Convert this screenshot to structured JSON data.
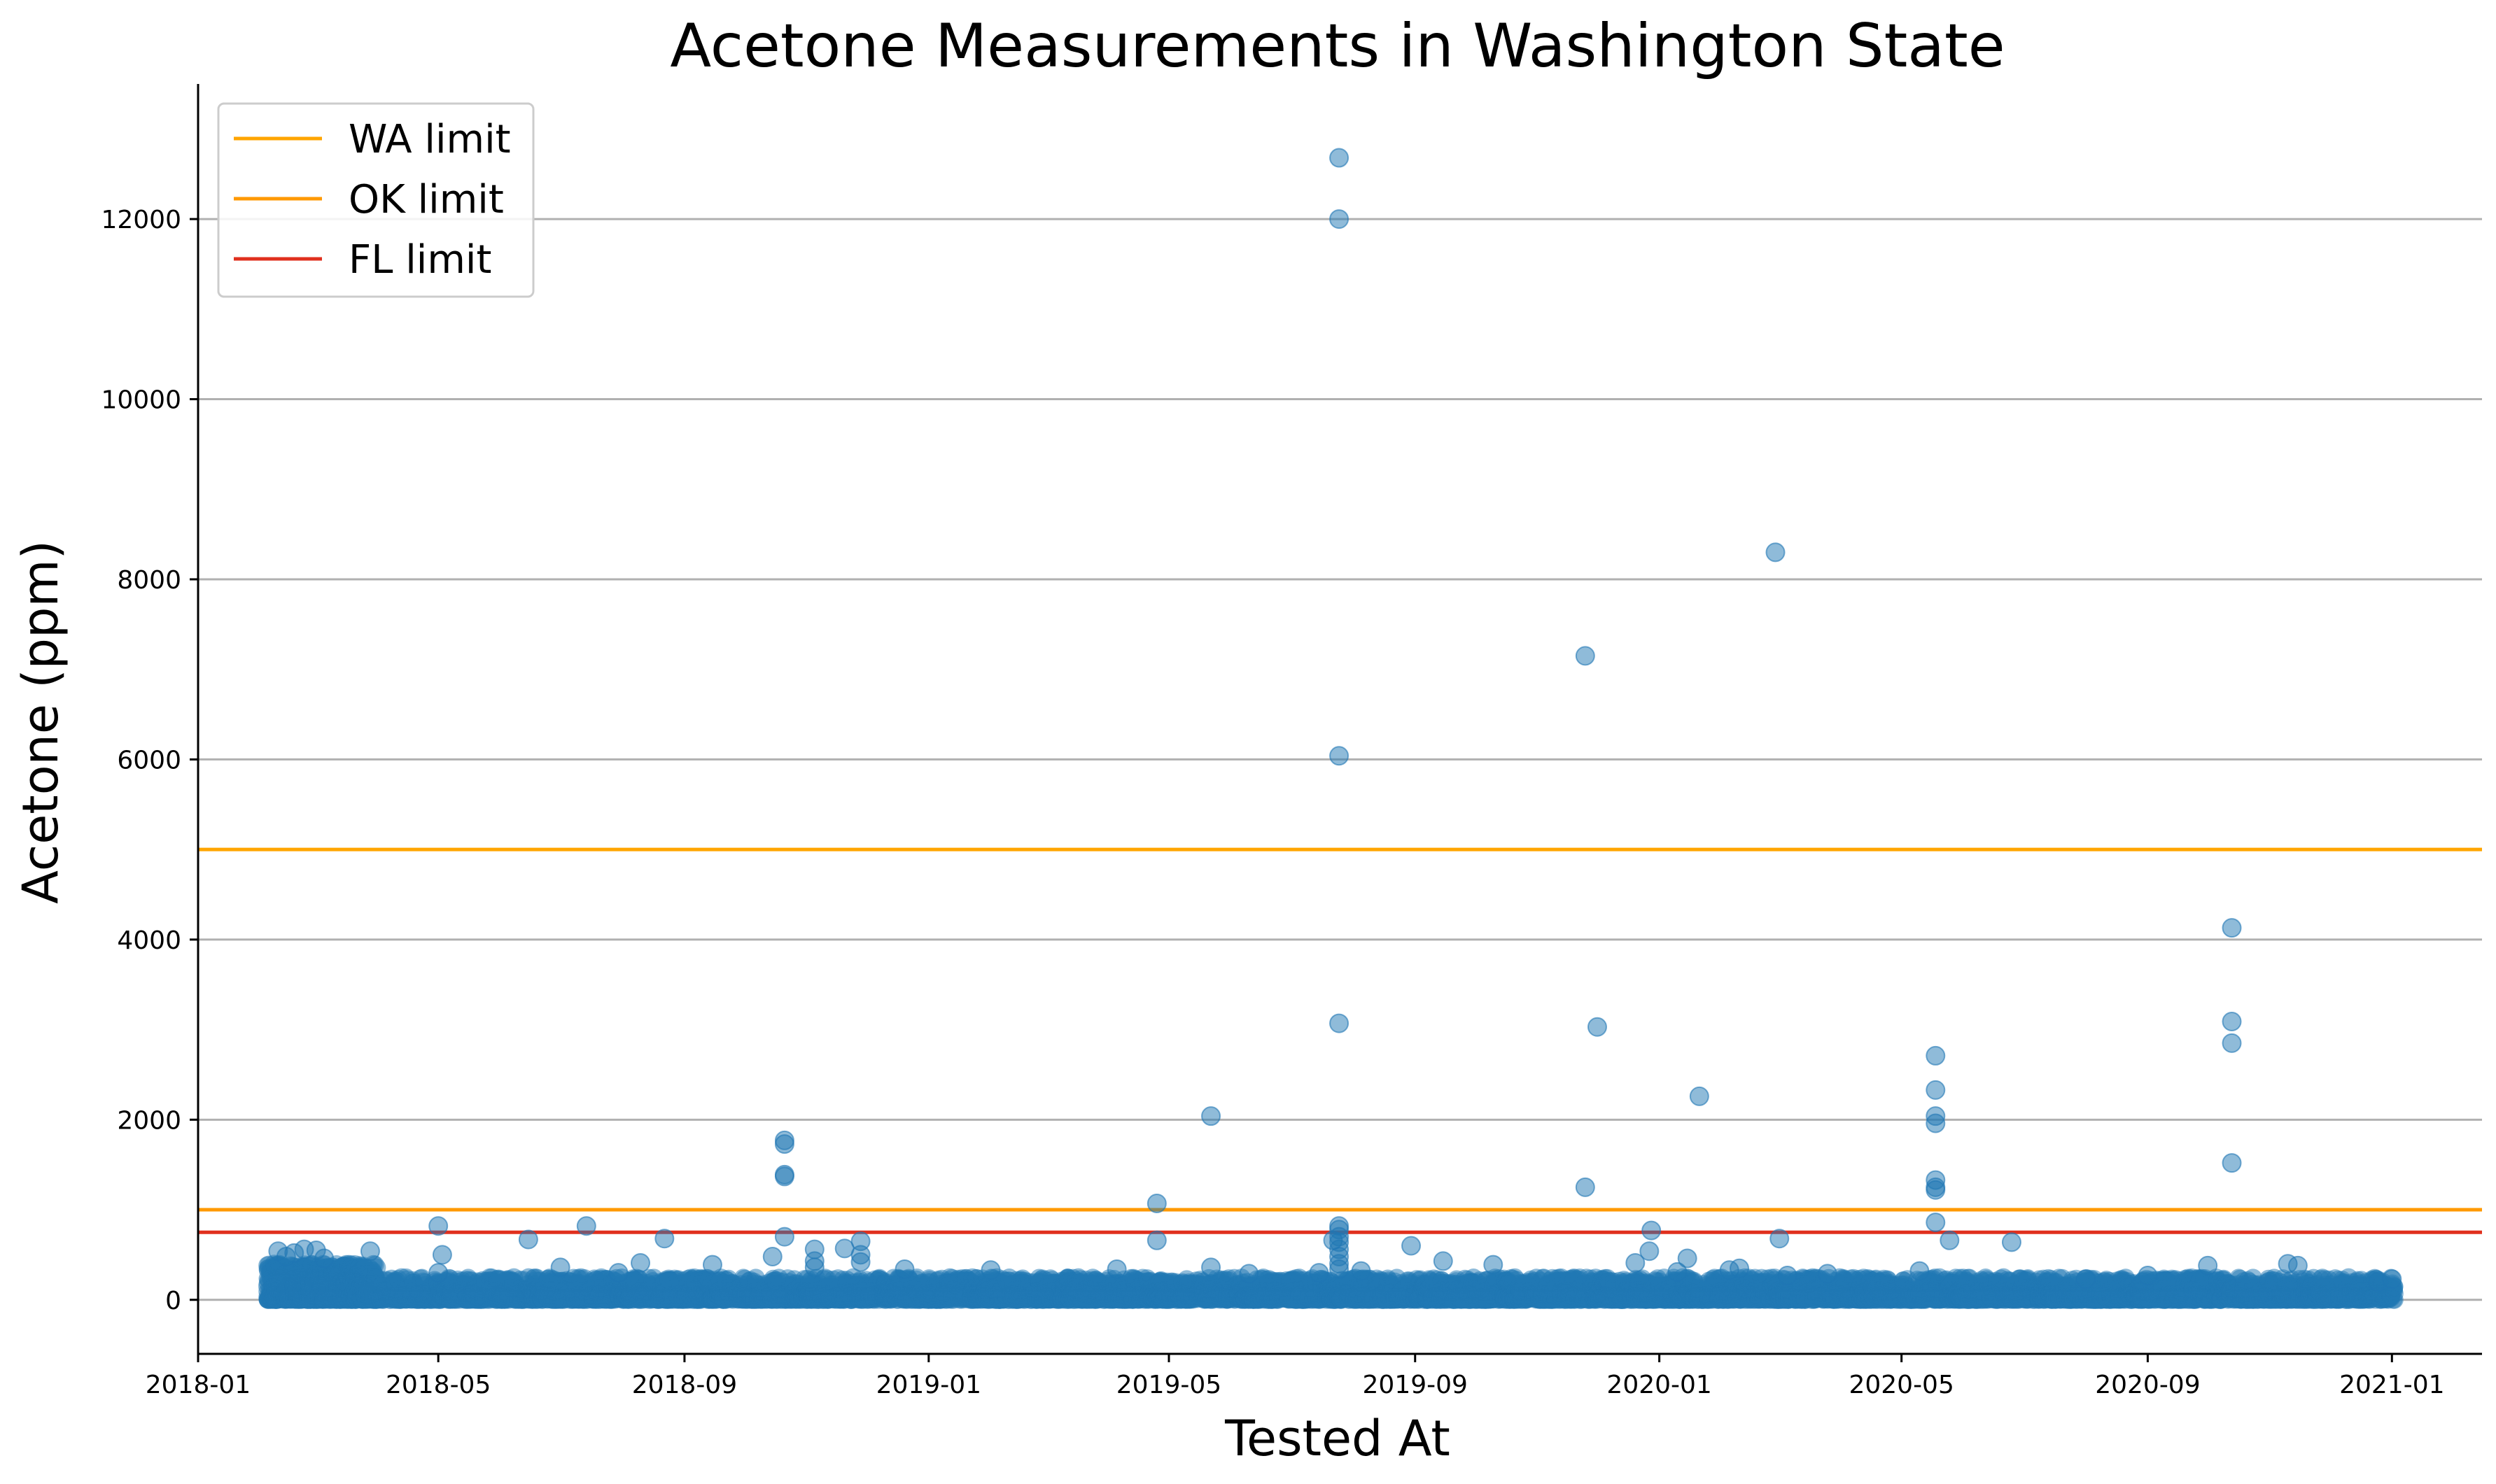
{
  "chart_data": {
    "type": "scatter",
    "title": "Acetone Measurements in Washington State",
    "xlabel": "Tested At",
    "ylabel": "Acetone (ppm)",
    "x_type": "date",
    "xlim": [
      "2018-01-01",
      "2021-02-15"
    ],
    "ylim": [
      -600,
      13500
    ],
    "x_ticks": [
      "2018-01",
      "2018-05",
      "2018-09",
      "2019-01",
      "2019-05",
      "2019-09",
      "2020-01",
      "2020-05",
      "2020-09",
      "2021-01"
    ],
    "y_ticks": [
      0,
      2000,
      4000,
      6000,
      8000,
      10000,
      12000
    ],
    "grid": "horizontal",
    "legend_position": "top-left",
    "marker_color": "#1f77b4",
    "limits": [
      {
        "name": "WA limit",
        "value": 5000,
        "color": "#ffa500"
      },
      {
        "name": "OK limit",
        "value": 1000,
        "color": "#ff9900"
      },
      {
        "name": "FL limit",
        "value": 750,
        "color": "#e0301e"
      }
    ],
    "series": [
      {
        "points": [
          [
            "2018-02-10",
            540
          ],
          [
            "2018-02-14",
            480
          ],
          [
            "2018-02-18",
            520
          ],
          [
            "2018-02-23",
            560
          ],
          [
            "2018-03-01",
            550
          ],
          [
            "2018-03-05",
            460
          ],
          [
            "2018-03-28",
            540
          ],
          [
            "2018-05-01",
            820
          ],
          [
            "2018-05-01",
            300
          ],
          [
            "2018-05-03",
            500
          ],
          [
            "2018-06-15",
            670
          ],
          [
            "2018-07-14",
            820
          ],
          [
            "2018-07-01",
            360
          ],
          [
            "2018-07-30",
            300
          ],
          [
            "2018-08-10",
            410
          ],
          [
            "2018-08-22",
            680
          ],
          [
            "2018-09-15",
            390
          ],
          [
            "2018-10-15",
            480
          ],
          [
            "2018-10-21",
            1770
          ],
          [
            "2018-10-21",
            1730
          ],
          [
            "2018-10-21",
            1390
          ],
          [
            "2018-10-21",
            1370
          ],
          [
            "2018-10-21",
            700
          ],
          [
            "2018-11-05",
            560
          ],
          [
            "2018-11-05",
            430
          ],
          [
            "2018-11-05",
            360
          ],
          [
            "2018-11-20",
            570
          ],
          [
            "2018-11-28",
            650
          ],
          [
            "2018-11-28",
            500
          ],
          [
            "2018-11-28",
            420
          ],
          [
            "2018-12-20",
            340
          ],
          [
            "2019-02-01",
            330
          ],
          [
            "2019-04-05",
            340
          ],
          [
            "2019-04-25",
            1070
          ],
          [
            "2019-04-25",
            660
          ],
          [
            "2019-05-22",
            2040
          ],
          [
            "2019-05-22",
            360
          ],
          [
            "2019-06-10",
            290
          ],
          [
            "2019-07-15",
            300
          ],
          [
            "2019-07-25",
            12680
          ],
          [
            "2019-07-25",
            12000
          ],
          [
            "2019-07-25",
            6040
          ],
          [
            "2019-07-25",
            3070
          ],
          [
            "2019-07-25",
            820
          ],
          [
            "2019-07-25",
            780
          ],
          [
            "2019-07-25",
            700
          ],
          [
            "2019-07-25",
            640
          ],
          [
            "2019-07-25",
            560
          ],
          [
            "2019-07-25",
            480
          ],
          [
            "2019-07-25",
            400
          ],
          [
            "2019-07-25",
            340
          ],
          [
            "2019-07-22",
            660
          ],
          [
            "2019-08-05",
            320
          ],
          [
            "2019-08-30",
            600
          ],
          [
            "2019-09-15",
            430
          ],
          [
            "2019-10-10",
            390
          ],
          [
            "2019-11-25",
            7150
          ],
          [
            "2019-11-25",
            1250
          ],
          [
            "2019-12-01",
            3030
          ],
          [
            "2019-12-20",
            410
          ],
          [
            "2019-12-28",
            770
          ],
          [
            "2019-12-27",
            540
          ],
          [
            "2020-01-10",
            310
          ],
          [
            "2020-01-15",
            460
          ],
          [
            "2020-01-21",
            2260
          ],
          [
            "2020-02-05",
            330
          ],
          [
            "2020-02-10",
            350
          ],
          [
            "2020-02-28",
            8300
          ],
          [
            "2020-03-01",
            680
          ],
          [
            "2020-03-05",
            270
          ],
          [
            "2020-03-25",
            290
          ],
          [
            "2020-05-10",
            320
          ],
          [
            "2020-05-18",
            2710
          ],
          [
            "2020-05-18",
            2330
          ],
          [
            "2020-05-18",
            2040
          ],
          [
            "2020-05-18",
            1960
          ],
          [
            "2020-05-18",
            1330
          ],
          [
            "2020-05-18",
            1250
          ],
          [
            "2020-05-18",
            1220
          ],
          [
            "2020-05-18",
            860
          ],
          [
            "2020-05-25",
            660
          ],
          [
            "2020-06-25",
            640
          ],
          [
            "2020-08-01",
            230
          ],
          [
            "2020-09-01",
            270
          ],
          [
            "2020-10-01",
            380
          ],
          [
            "2020-10-13",
            4130
          ],
          [
            "2020-10-13",
            3090
          ],
          [
            "2020-10-13",
            2850
          ],
          [
            "2020-10-13",
            1520
          ],
          [
            "2020-11-10",
            400
          ],
          [
            "2020-11-15",
            380
          ],
          [
            "2020-12-25",
            200
          ],
          [
            "2021-01-01",
            230
          ]
        ],
        "baseline_range": [
          "2018-02-05",
          "2021-01-02"
        ],
        "baseline_values": [
          0,
          250
        ]
      }
    ]
  }
}
